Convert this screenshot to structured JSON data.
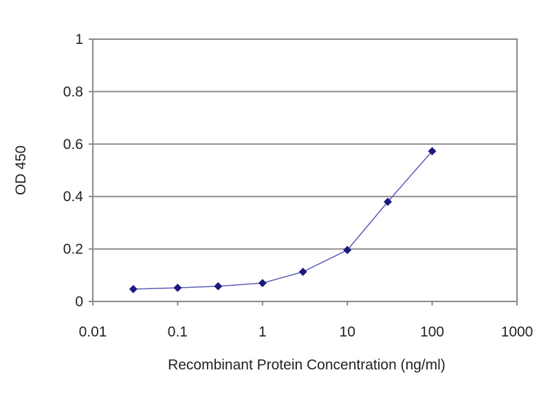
{
  "chart_data": {
    "type": "line",
    "title": "",
    "xlabel": "Recombinant Protein Concentration (ng/ml)",
    "ylabel": "OD 450",
    "xscale": "log",
    "xlim": [
      0.01,
      1000
    ],
    "ylim": [
      0,
      1
    ],
    "grid": true,
    "x_ticks": [
      "0.01",
      "0.1",
      "1",
      "10",
      "100",
      "1000"
    ],
    "x_tick_values": [
      0.01,
      0.1,
      1,
      10,
      100,
      1000
    ],
    "y_ticks": [
      "0",
      "0.2",
      "0.4",
      "0.6",
      "0.8",
      "1"
    ],
    "y_tick_values": [
      0,
      0.2,
      0.4,
      0.6,
      0.8,
      1
    ],
    "series": [
      {
        "name": "OD 450",
        "color": "#1a1a80",
        "x": [
          0.03,
          0.1,
          0.3,
          1,
          3,
          10,
          30,
          100
        ],
        "y": [
          0.047,
          0.052,
          0.058,
          0.07,
          0.113,
          0.196,
          0.38,
          0.573
        ]
      }
    ]
  }
}
